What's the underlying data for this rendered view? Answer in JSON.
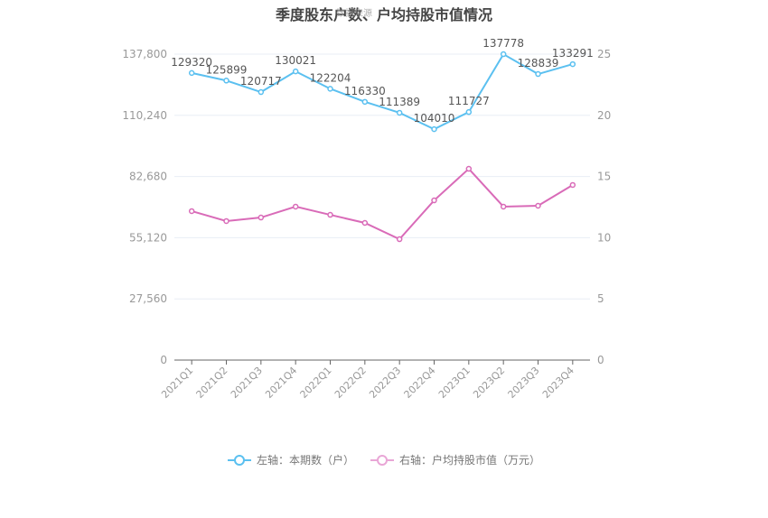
{
  "title": "季度股东户数、户均持股市值情况",
  "watermark": "数据来源",
  "colors": {
    "left_series": "#5bc0f0",
    "right_series": "#d96bb8",
    "grid": "#e8eef5",
    "axis": "#666666"
  },
  "axes": {
    "left_ticks": [
      "137,800",
      "110,240",
      "82,680",
      "55,120",
      "27,560",
      "0"
    ],
    "right_ticks": [
      "25",
      "20",
      "15",
      "10",
      "5",
      "0"
    ]
  },
  "legend": {
    "left": "左轴：本期数（户）",
    "right": "右轴：户均持股市值（万元）"
  },
  "chart_data": {
    "type": "line",
    "title": "季度股东户数、户均持股市值情况",
    "categories": [
      "2021Q1",
      "2021Q2",
      "2021Q3",
      "2021Q4",
      "2022Q1",
      "2022Q2",
      "2022Q3",
      "2022Q4",
      "2023Q1",
      "2023Q2",
      "2023Q3",
      "2023Q4"
    ],
    "series": [
      {
        "name": "左轴：本期数（户）",
        "axis": "left",
        "color": "#5bc0f0",
        "values": [
          129320,
          125899,
          120717,
          130021,
          122204,
          116330,
          111389,
          104010,
          111727,
          137778,
          128839,
          133291
        ],
        "labels_shown": true
      },
      {
        "name": "右轴：户均持股市值（万元）",
        "axis": "right",
        "color": "#d96bb8",
        "values": [
          12.17,
          11.36,
          11.65,
          12.54,
          11.87,
          11.21,
          9.88,
          13.05,
          15.63,
          12.54,
          12.61,
          14.31
        ],
        "labels_shown": false
      }
    ],
    "ylim_left": [
      0,
      137800
    ],
    "yticks_left": [
      0,
      27560,
      55120,
      82680,
      110240,
      137800
    ],
    "ylim_right": [
      0,
      25
    ],
    "yticks_right": [
      0,
      5,
      10,
      15,
      20,
      25
    ],
    "xlabel": "",
    "ylabel": "",
    "grid": true,
    "legend_position": "bottom"
  }
}
